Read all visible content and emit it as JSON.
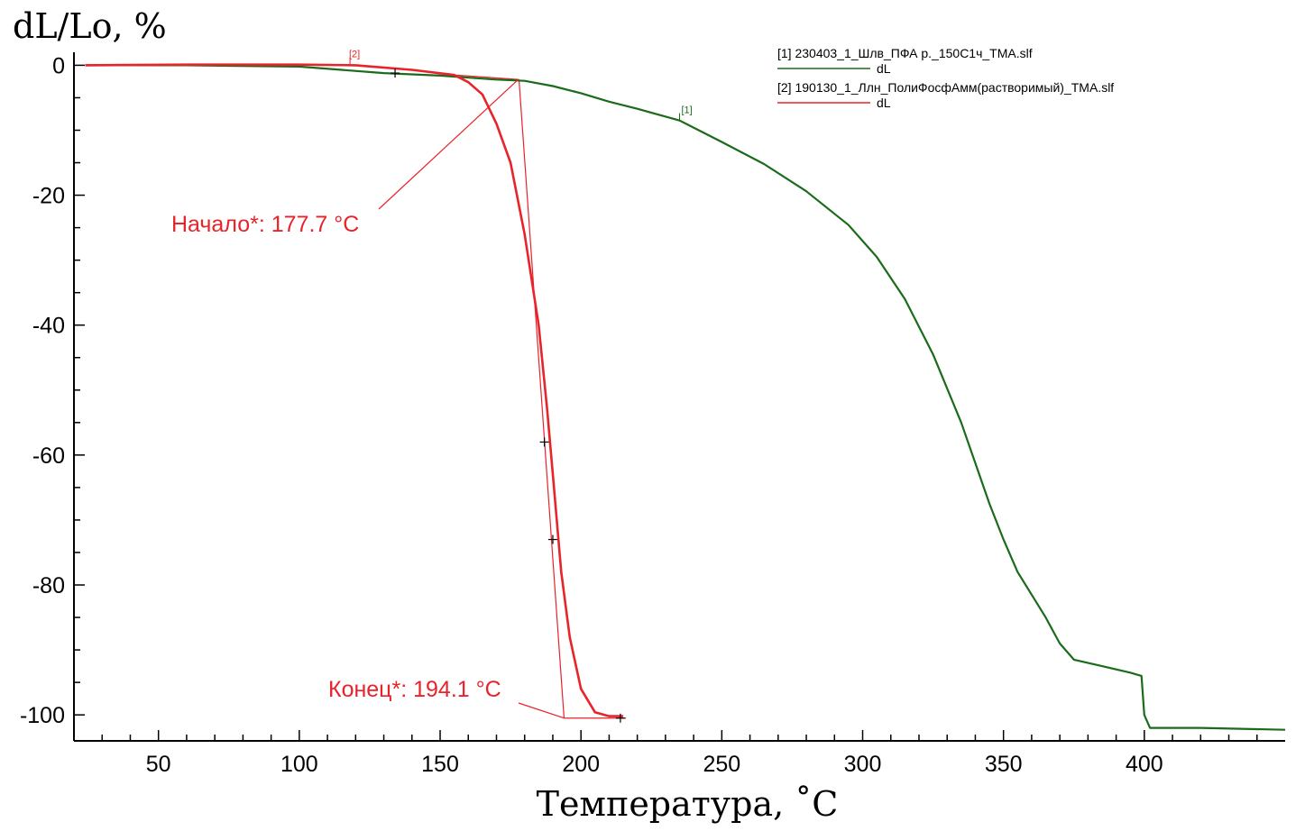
{
  "chart_data": {
    "type": "line",
    "ylabel": "dL/Lo, %",
    "xlabel": "Температура, ˚C",
    "xlim": [
      20,
      450
    ],
    "ylim": [
      -104,
      2
    ],
    "x_ticks": [
      50,
      100,
      150,
      200,
      250,
      300,
      350,
      400
    ],
    "y_ticks": [
      0,
      -20,
      -40,
      -60,
      -80,
      -100
    ],
    "legend_position": "top-right",
    "series": [
      {
        "name": "[1] 230403_1_Шлв_ПФА р._150С1ч_TMA.slf",
        "sub_label": "dL",
        "marker": "[1]",
        "color": "#1a6b1a",
        "x": [
          24,
          60,
          100,
          130,
          150,
          170,
          180,
          190,
          200,
          210,
          220,
          235,
          250,
          265,
          280,
          295,
          305,
          315,
          325,
          335,
          345,
          350,
          355,
          360,
          365,
          370,
          375,
          385,
          395,
          399,
          400,
          402,
          420,
          450
        ],
        "y": [
          0,
          0,
          -0.2,
          -1.2,
          -1.6,
          -2.2,
          -2.4,
          -3.2,
          -4.3,
          -5.6,
          -6.7,
          -8.5,
          -11.8,
          -15.2,
          -19.4,
          -24.6,
          -29.5,
          -36,
          -44.5,
          -55,
          -67.5,
          -73,
          -78,
          -81.5,
          -85,
          -89,
          -91.5,
          -92.5,
          -93.5,
          -94,
          -100,
          -102,
          -102,
          -102.3
        ]
      },
      {
        "name": "[2] 190130_1_Ллн_ПолиФосфАмм(растворимый)_TMA.slf",
        "sub_label": "dL",
        "marker": "[2]",
        "color": "#e8232a",
        "x": [
          24,
          60,
          100,
          120,
          140,
          155,
          160,
          165,
          170,
          175,
          180,
          185,
          188,
          190,
          193,
          196,
          200,
          205,
          210,
          215
        ],
        "y": [
          0,
          0.1,
          0.1,
          0,
          -0.7,
          -1.5,
          -2.6,
          -4.5,
          -9,
          -15,
          -26,
          -40,
          -53,
          -63,
          -78,
          -88,
          -96,
          -99.6,
          -100.2,
          -100.2
        ]
      }
    ],
    "tangent_lines": [
      {
        "x": [
          155,
          178
        ],
        "y": [
          -1.5,
          -2.2
        ]
      },
      {
        "x": [
          178,
          194
        ],
        "y": [
          -2.2,
          -100.5
        ]
      },
      {
        "x": [
          194,
          216
        ],
        "y": [
          -100.5,
          -100.5
        ]
      }
    ],
    "cross_marks": [
      {
        "x": 134,
        "y": -1.2
      },
      {
        "x": 187,
        "y": -58
      },
      {
        "x": 190,
        "y": -73
      },
      {
        "x": 214,
        "y": -100.5
      }
    ],
    "annotations": [
      {
        "text": "Начало*: 177.7 °C",
        "target": {
          "x": 177.7,
          "y": -2.2
        },
        "color": "#e8232a"
      },
      {
        "text": "Конец*: 194.1 °C",
        "target": {
          "x": 194.1,
          "y": -100.5
        },
        "color": "#e8232a"
      }
    ]
  }
}
